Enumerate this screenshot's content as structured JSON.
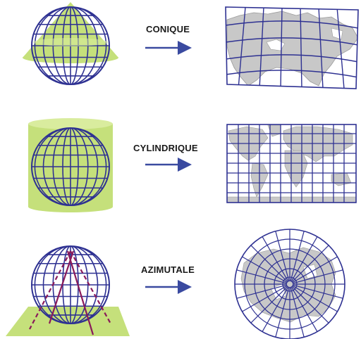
{
  "rows": [
    {
      "label": "CONIQUE"
    },
    {
      "label": "CYLINDRIQUE"
    },
    {
      "label": "AZIMUTALE"
    }
  ],
  "colors": {
    "grid": "#2e3192",
    "surface": "#c5e07b",
    "surface_light": "#d9ec9e",
    "land": "#c8c8c8",
    "land_edge": "#9a9a9a",
    "projection_line": "#8a1a5a",
    "arrow": "#3a4aa0"
  },
  "icons": [
    "cone-globe-icon",
    "cylinder-globe-icon",
    "plane-globe-icon",
    "arrow-icon",
    "conic-map-icon",
    "cylindrical-map-icon",
    "azimuthal-map-icon"
  ]
}
